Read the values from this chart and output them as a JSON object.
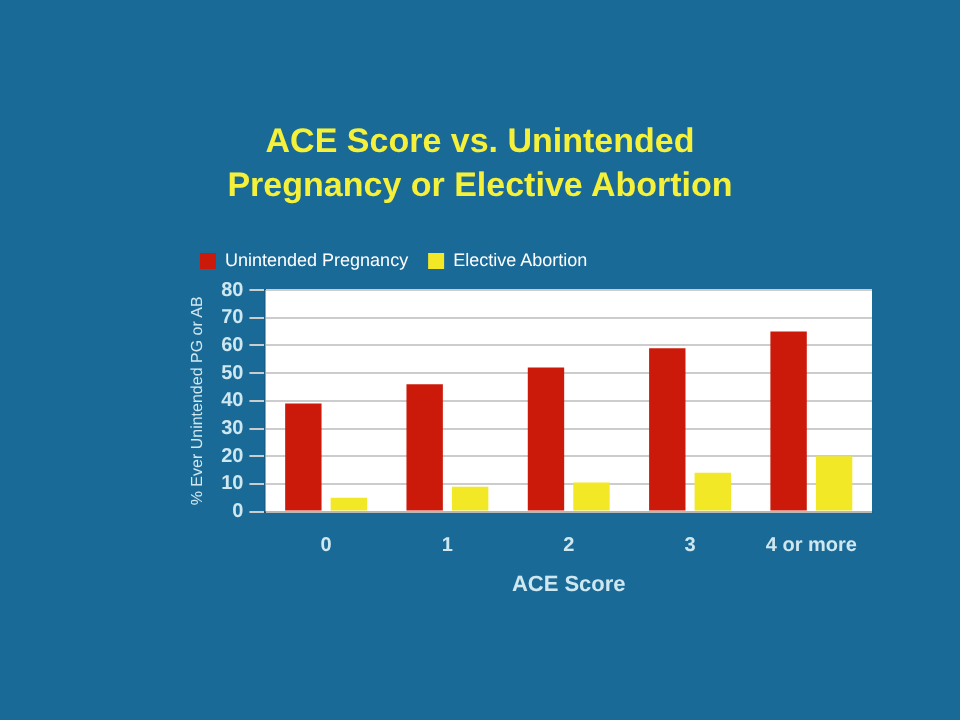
{
  "chart_data": {
    "type": "bar",
    "title": "ACE Score vs. Unintended Pregnancy or Elective Abortion",
    "xlabel": "ACE Score",
    "ylabel": "% Ever Unintended PG or AB",
    "categories": [
      "0",
      "1",
      "2",
      "3",
      "4 or more"
    ],
    "series": [
      {
        "name": "Unintended Pregnancy",
        "color": "#cc1a0a",
        "values": [
          39,
          46,
          52,
          59,
          65
        ]
      },
      {
        "name": "Elective Abortion",
        "color": "#f2e825",
        "values": [
          5,
          9,
          10.5,
          14,
          20
        ]
      }
    ],
    "ylim": [
      0,
      80
    ],
    "yticks": [
      0,
      10,
      20,
      30,
      40,
      50,
      60,
      70,
      80
    ],
    "grid": "y",
    "legend": "top left"
  }
}
